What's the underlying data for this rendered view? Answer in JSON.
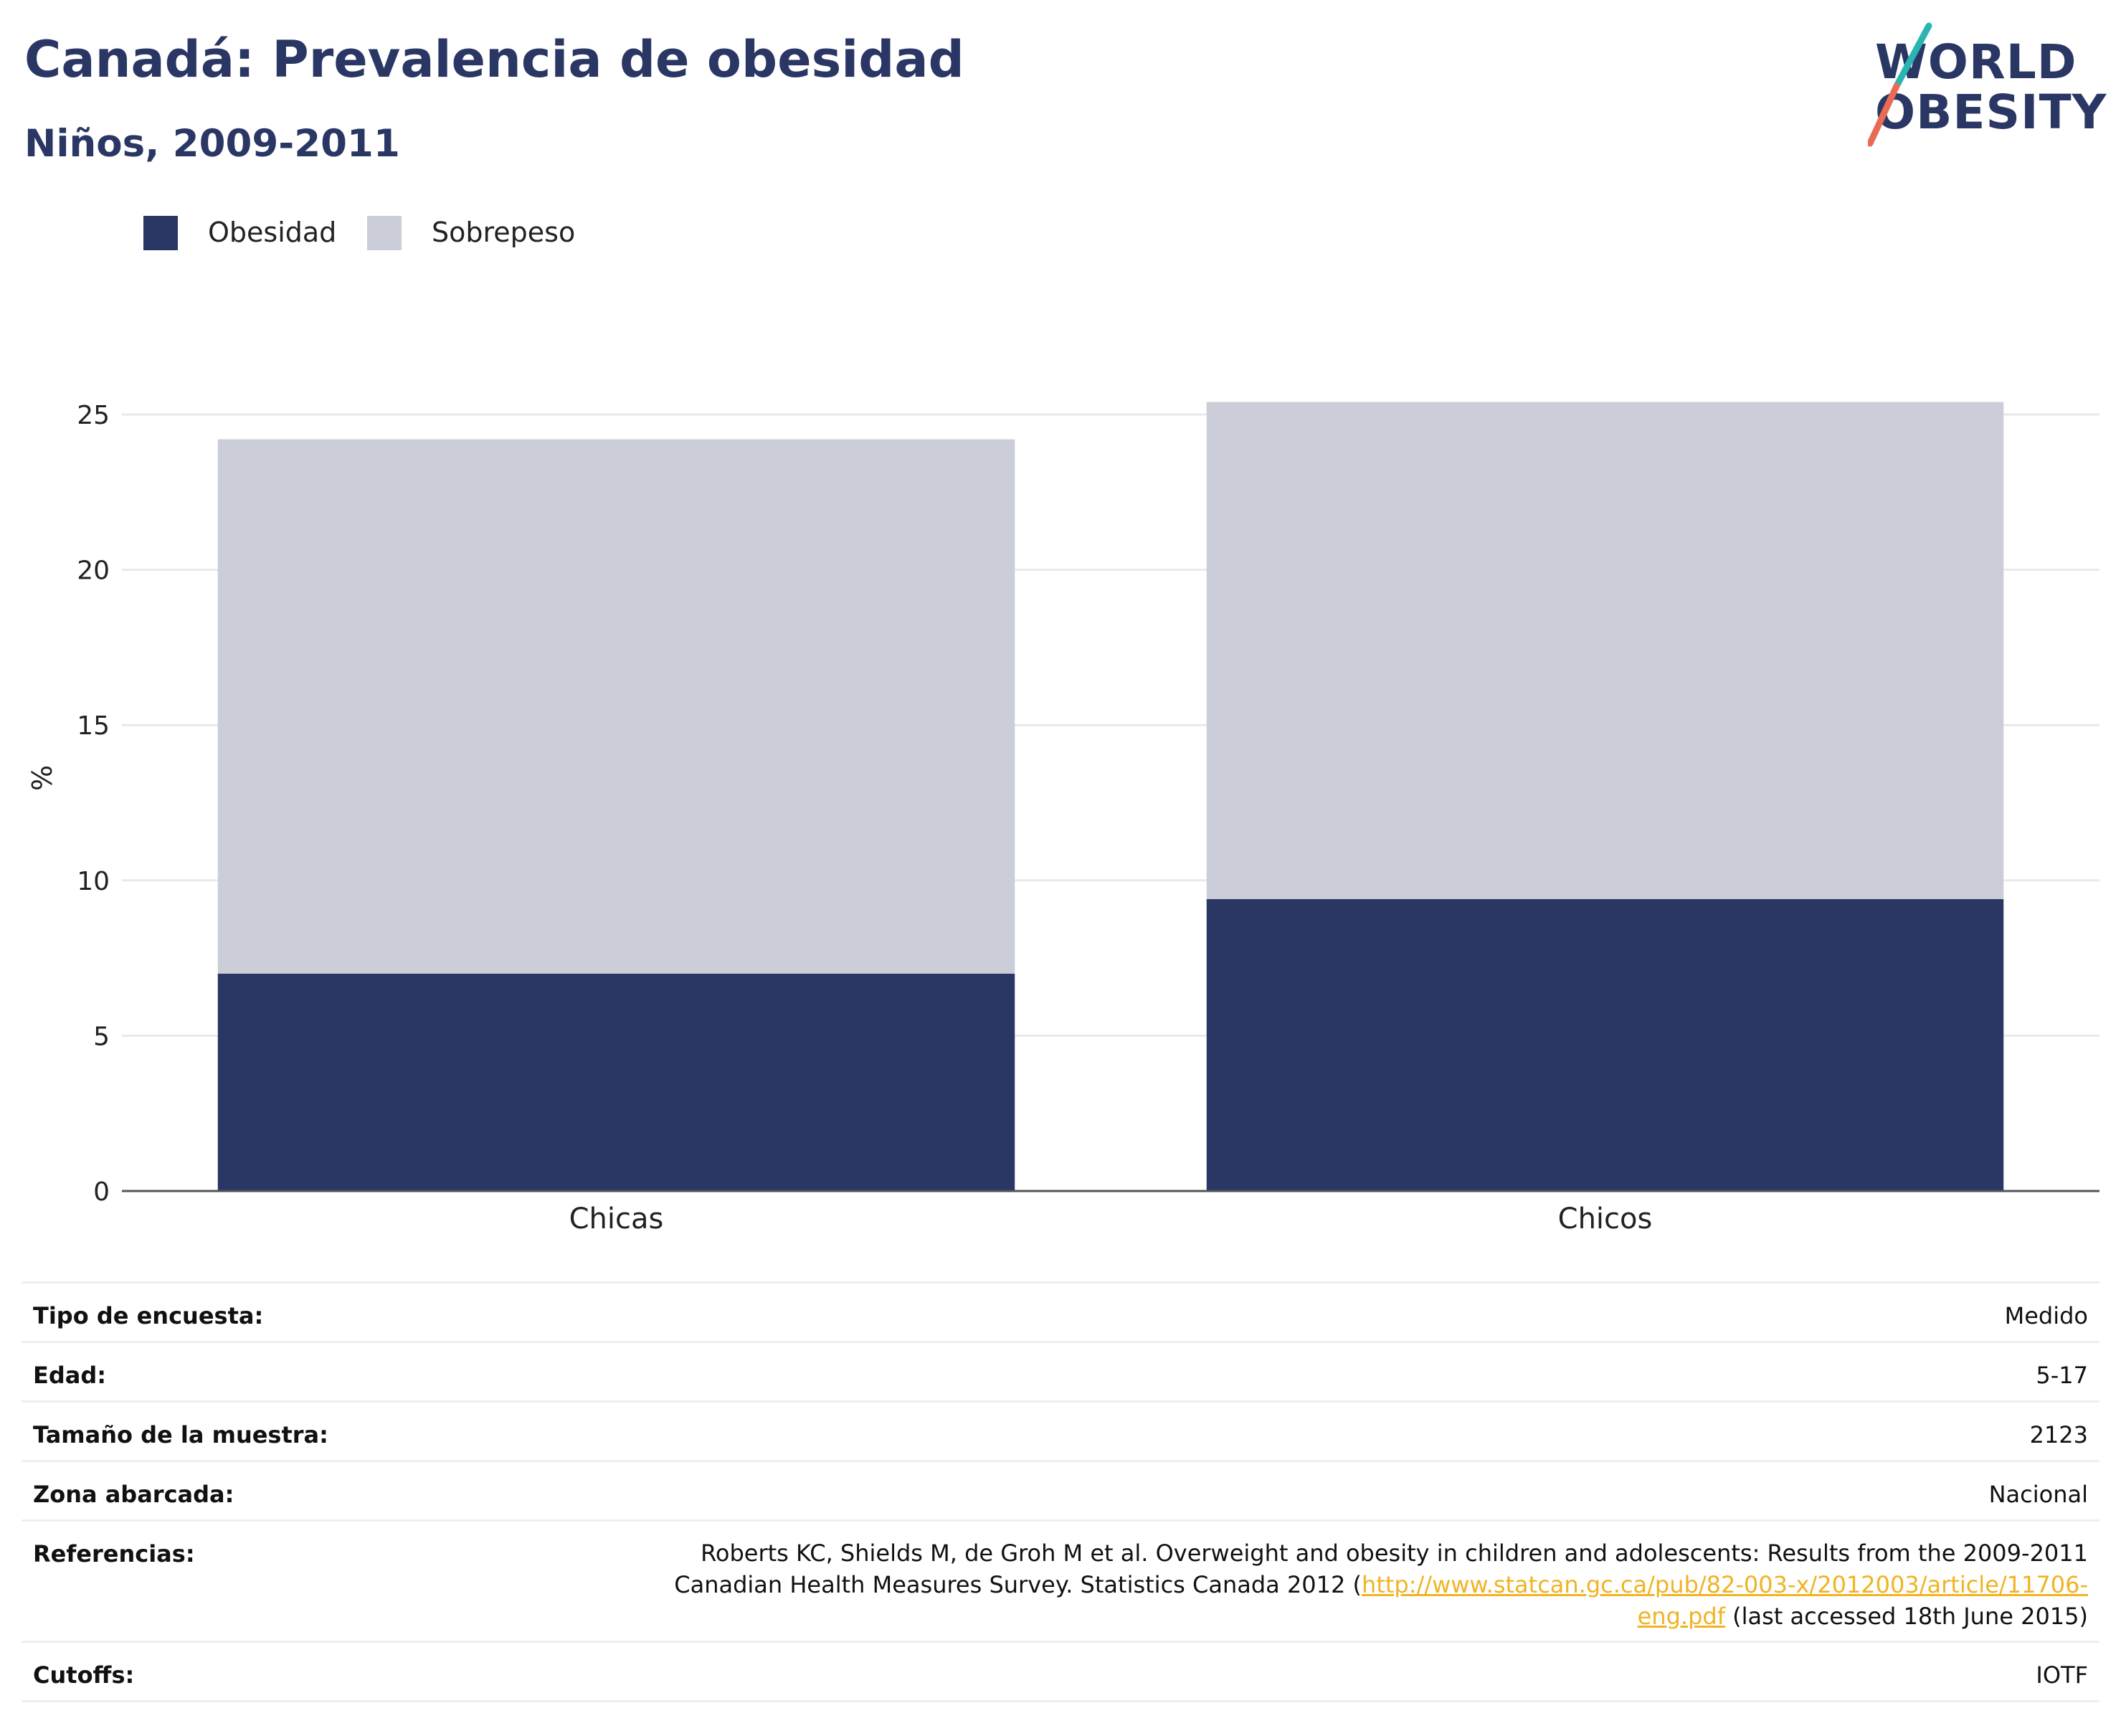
{
  "header": {
    "title": "Canadá: Prevalencia de obesidad",
    "subtitle": "Niños, 2009-2011"
  },
  "logo": {
    "line1": "WORLD",
    "line2": "OBESITY",
    "colors": {
      "teal": "#2bb5b0",
      "coral": "#e96b56",
      "navy": "#2a3764"
    }
  },
  "chart_data": {
    "type": "bar",
    "stacked": true,
    "categories": [
      "Chicas",
      "Chicos"
    ],
    "series": [
      {
        "name": "Obesidad",
        "values": [
          7.0,
          9.4
        ],
        "color": "#2a3764"
      },
      {
        "name": "Sobrepeso",
        "values": [
          17.2,
          16.0
        ],
        "color": "#cbcdd8"
      }
    ],
    "ylabel": "%",
    "ylim": [
      0,
      25
    ],
    "yticks": [
      "0",
      "5",
      "10",
      "15",
      "20",
      "25"
    ],
    "grid": true,
    "legend_position": "top-left"
  },
  "meta": {
    "rows": [
      {
        "key": "Tipo de encuesta:",
        "value": "Medido"
      },
      {
        "key": "Edad:",
        "value": "5-17"
      },
      {
        "key": "Tamaño de la muestra:",
        "value": "2123"
      },
      {
        "key": "Zona abarcada:",
        "value": "Nacional"
      }
    ],
    "references": {
      "key": "Referencias:",
      "text_before": "Roberts KC, Shields M, de Groh M et al. Overweight and obesity in children and adolescents: Results from the 2009-2011 Canadian Health Measures Survey. Statistics Canada 2012 (",
      "link": "http://www.statcan.gc.ca/pub/82-003-x/2012003/article/11706-eng.pdf",
      "text_after": " (last accessed 18th June 2015)"
    },
    "cutoffs": {
      "key": "Cutoffs:",
      "value": "IOTF"
    }
  }
}
